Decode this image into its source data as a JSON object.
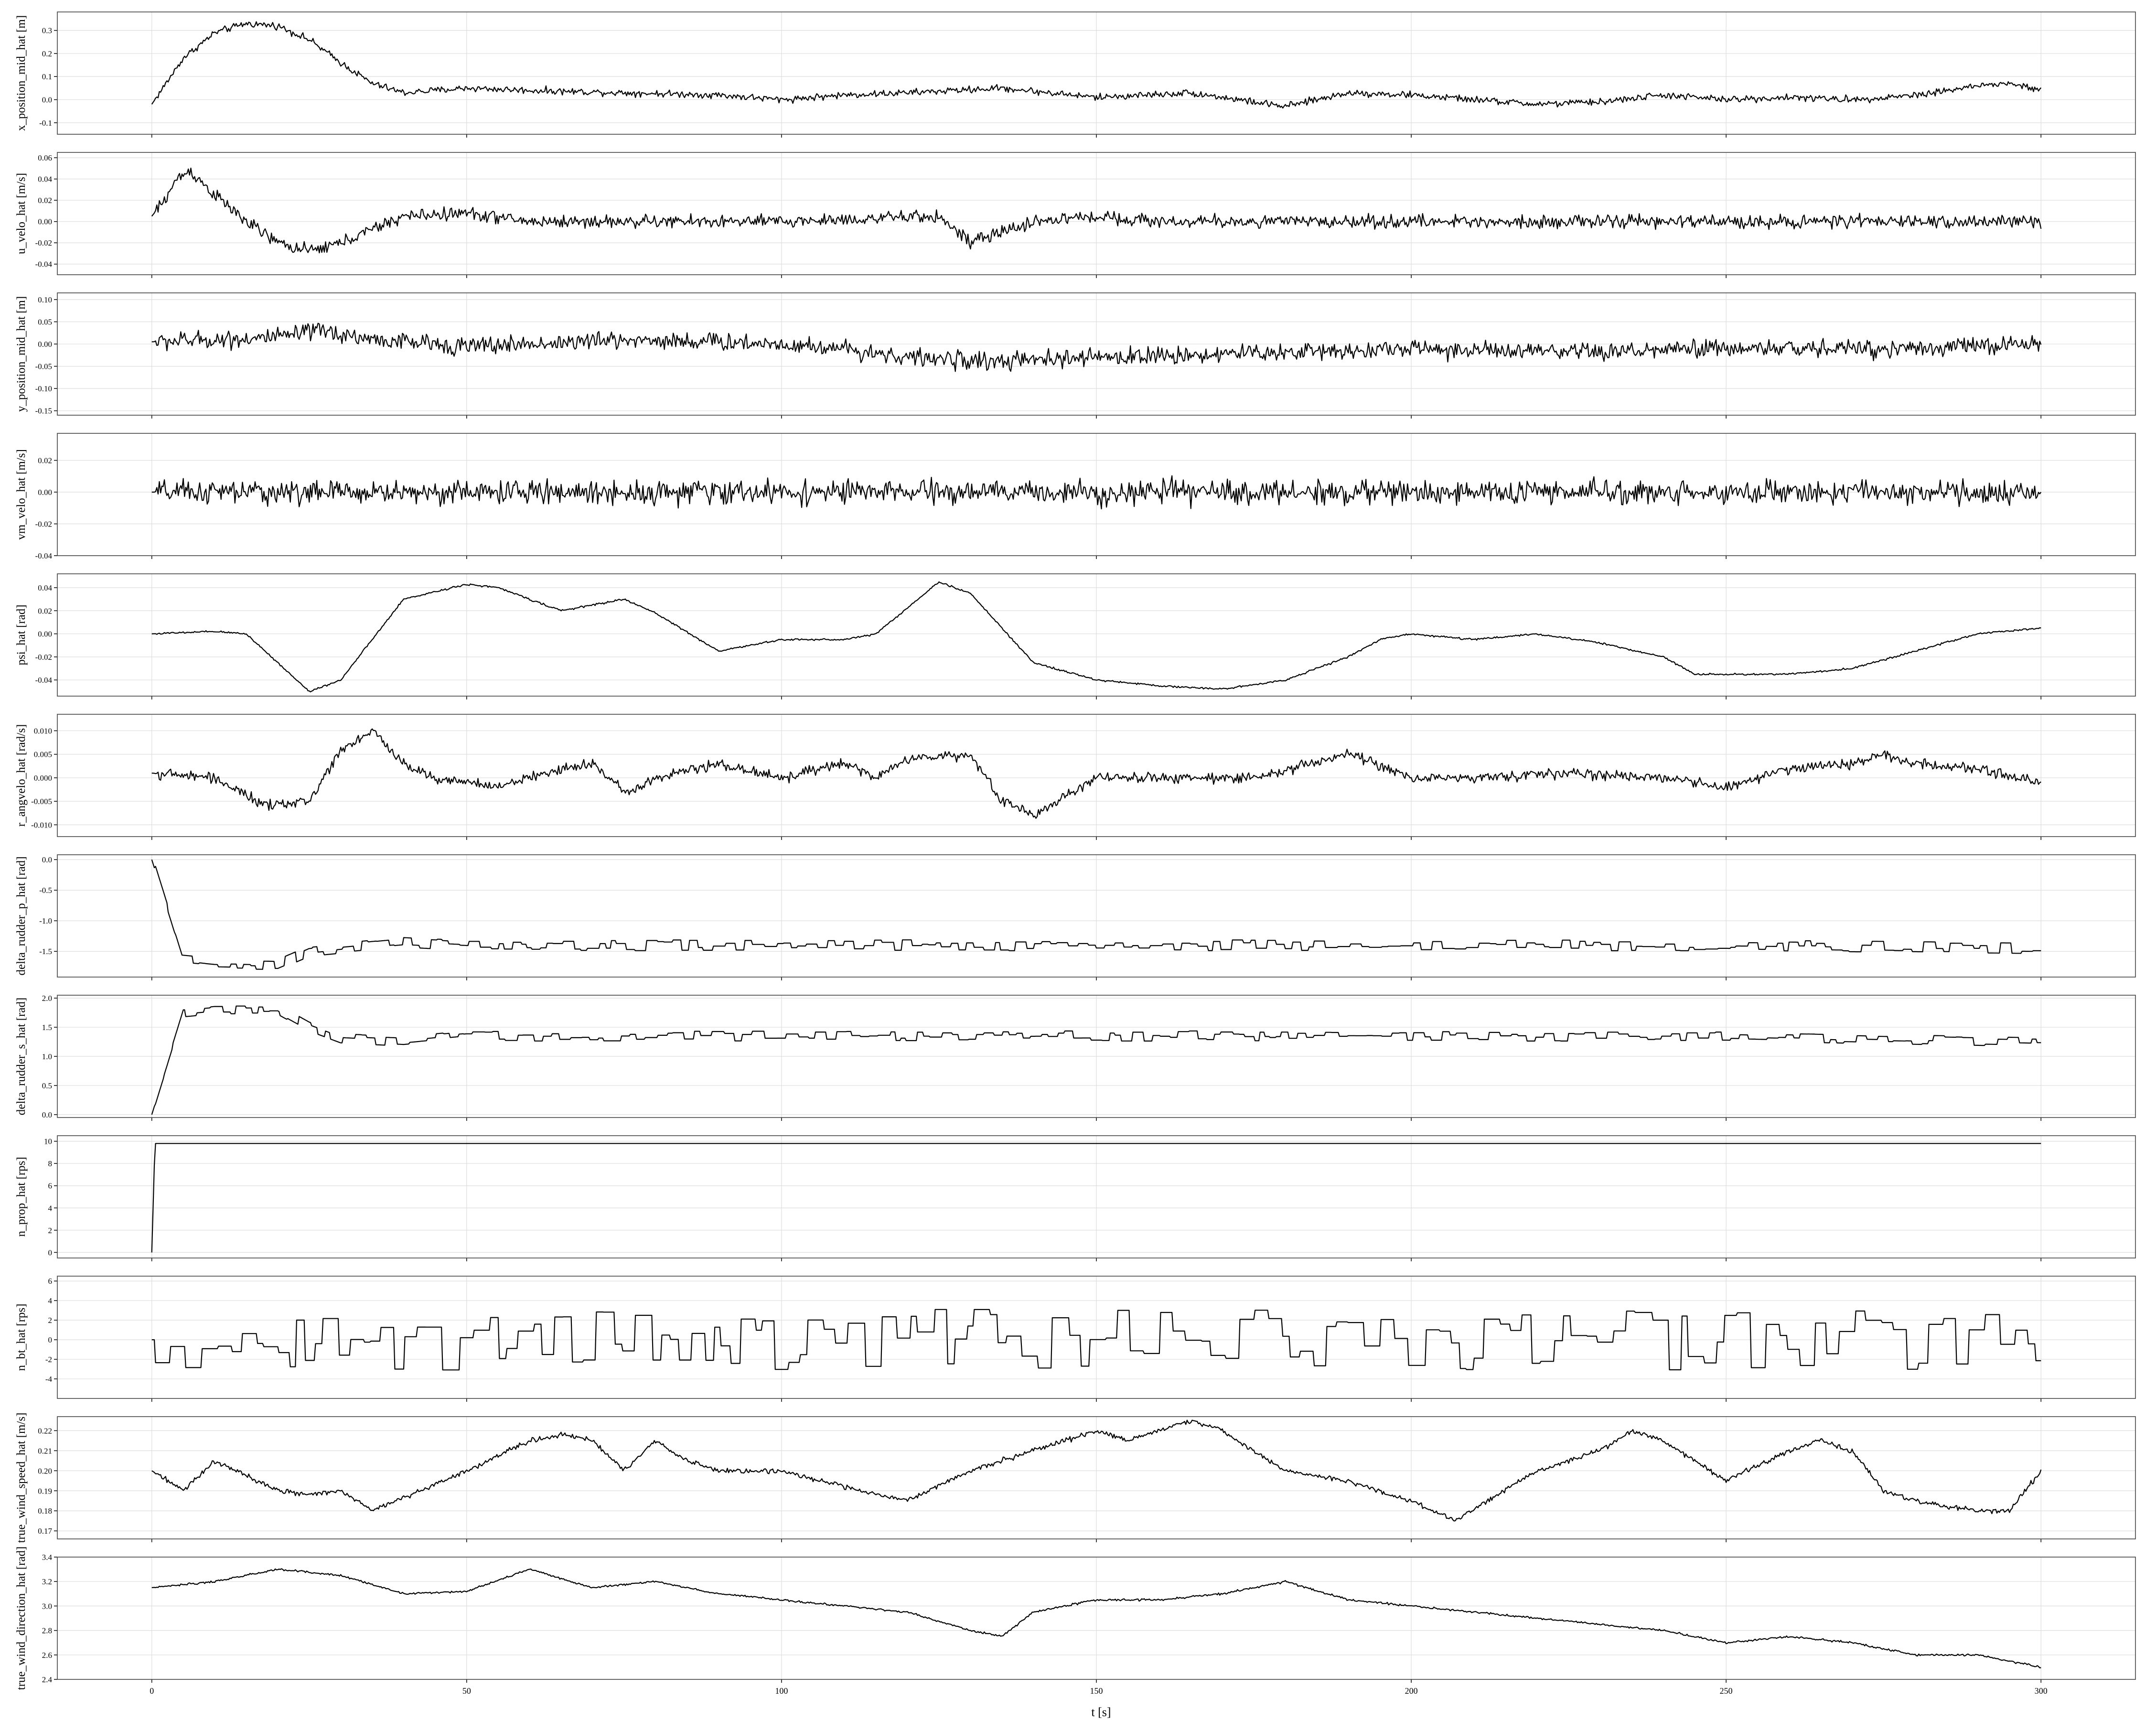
{
  "figure": {
    "xlabel": "t [s]",
    "xlim": [
      -15,
      315
    ],
    "xticks": [
      0,
      50,
      100,
      150,
      200,
      250,
      300
    ],
    "grid": true,
    "line_color": "#000000",
    "grid_color": "#dddddd"
  },
  "chart_data": [
    {
      "type": "line",
      "ylabel": "x_position_mid_hat [m]",
      "ylim": [
        -0.15,
        0.38
      ],
      "yticks": [
        -0.1,
        0.0,
        0.1,
        0.2,
        0.3
      ],
      "tick_decimals": 1,
      "noise": 0.022,
      "step_hold": 0,
      "x": [
        0,
        5,
        10,
        15,
        20,
        25,
        30,
        35,
        40,
        50,
        60,
        75,
        90,
        100,
        110,
        120,
        135,
        150,
        165,
        180,
        190,
        200,
        210,
        220,
        230,
        240,
        250,
        260,
        270,
        280,
        290,
        295,
        300
      ],
      "values": [
        -0.02,
        0.18,
        0.29,
        0.33,
        0.32,
        0.26,
        0.16,
        0.07,
        0.03,
        0.05,
        0.04,
        0.03,
        0.02,
        0.0,
        0.02,
        0.03,
        0.05,
        0.01,
        0.03,
        -0.03,
        0.03,
        0.02,
        0.0,
        -0.02,
        -0.01,
        0.02,
        0.0,
        0.01,
        0.0,
        0.02,
        0.06,
        0.07,
        0.04
      ]
    },
    {
      "type": "line",
      "ylabel": "u_velo_hat [m/s]",
      "ylim": [
        -0.05,
        0.065
      ],
      "yticks": [
        -0.04,
        -0.02,
        0.0,
        0.02,
        0.04,
        0.06
      ],
      "tick_decimals": 2,
      "noise": 0.009,
      "step_hold": 0,
      "x": [
        0,
        2,
        4,
        6,
        10,
        15,
        20,
        25,
        30,
        40,
        50,
        60,
        75,
        100,
        125,
        130,
        140,
        150,
        160,
        175,
        200,
        225,
        250,
        275,
        300
      ],
      "values": [
        0.005,
        0.02,
        0.04,
        0.048,
        0.025,
        0.0,
        -0.02,
        -0.028,
        -0.02,
        0.005,
        0.008,
        0.0,
        0.0,
        0.0,
        0.005,
        -0.02,
        0.0,
        0.005,
        0.0,
        0.0,
        0.0,
        0.0,
        0.0,
        0.0,
        0.0
      ]
    },
    {
      "type": "line",
      "ylabel": "y_position_mid_hat [m]",
      "ylim": [
        -0.16,
        0.115
      ],
      "yticks": [
        -0.15,
        -0.1,
        -0.05,
        0.0,
        0.05,
        0.1
      ],
      "tick_decimals": 2,
      "noise": 0.03,
      "step_hold": 0,
      "x": [
        0,
        10,
        20,
        27,
        35,
        50,
        60,
        75,
        90,
        100,
        110,
        120,
        135,
        150,
        175,
        200,
        225,
        250,
        275,
        300
      ],
      "values": [
        0.005,
        0.01,
        0.015,
        0.03,
        0.01,
        -0.005,
        0.0,
        0.01,
        0.005,
        0.0,
        -0.01,
        -0.03,
        -0.04,
        -0.03,
        -0.02,
        -0.01,
        -0.02,
        -0.01,
        -0.01,
        0.0
      ]
    },
    {
      "type": "line",
      "ylabel": "vm_velo_hat [m/s]",
      "ylim": [
        -0.04,
        0.037
      ],
      "yticks": [
        -0.04,
        -0.02,
        0.0,
        0.02
      ],
      "tick_decimals": 2,
      "noise": 0.011,
      "step_hold": 0,
      "x": [
        0,
        100,
        200,
        300
      ],
      "values": [
        0.0,
        0.0,
        0.0,
        0.0
      ]
    },
    {
      "type": "line",
      "ylabel": "psi_hat [rad]",
      "ylim": [
        -0.054,
        0.052
      ],
      "yticks": [
        -0.04,
        -0.02,
        0.0,
        0.02,
        0.04
      ],
      "tick_decimals": 2,
      "noise": 0.0012,
      "step_hold": 0,
      "x": [
        0,
        10,
        15,
        20,
        25,
        30,
        40,
        50,
        55,
        65,
        75,
        80,
        90,
        100,
        110,
        115,
        125,
        130,
        140,
        150,
        160,
        170,
        180,
        190,
        195,
        200,
        210,
        220,
        230,
        240,
        245,
        250,
        260,
        270,
        280,
        290,
        300
      ],
      "values": [
        0.0,
        0.002,
        0.0,
        -0.025,
        -0.05,
        -0.04,
        0.03,
        0.043,
        0.04,
        0.02,
        0.03,
        0.018,
        -0.015,
        -0.005,
        -0.005,
        0.0,
        0.045,
        0.035,
        -0.025,
        -0.04,
        -0.045,
        -0.048,
        -0.04,
        -0.02,
        -0.005,
        0.0,
        -0.005,
        0.0,
        -0.008,
        -0.02,
        -0.035,
        -0.035,
        -0.035,
        -0.03,
        -0.015,
        0.0,
        0.005
      ]
    },
    {
      "type": "line",
      "ylabel": "r_angvelo_hat [rad/s]",
      "ylim": [
        -0.0125,
        0.0135
      ],
      "yticks": [
        -0.01,
        -0.005,
        0.0,
        0.005,
        0.01
      ],
      "tick_decimals": 3,
      "noise": 0.0016,
      "step_hold": 0,
      "x": [
        0,
        10,
        18,
        25,
        30,
        35,
        40,
        45,
        55,
        65,
        70,
        75,
        80,
        90,
        100,
        110,
        115,
        120,
        130,
        135,
        140,
        150,
        160,
        175,
        190,
        200,
        210,
        225,
        240,
        250,
        260,
        270,
        275,
        280,
        290,
        300
      ],
      "values": [
        0.001,
        0.0,
        -0.006,
        -0.005,
        0.006,
        0.01,
        0.003,
        0.0,
        -0.002,
        0.002,
        0.003,
        -0.003,
        0.0,
        0.003,
        0.0,
        0.003,
        0.0,
        0.004,
        0.005,
        -0.005,
        -0.008,
        0.0,
        0.0,
        0.0,
        0.005,
        0.0,
        0.0,
        0.001,
        0.0,
        -0.002,
        0.002,
        0.003,
        0.005,
        0.003,
        0.002,
        -0.001
      ]
    },
    {
      "type": "line",
      "ylabel": "delta_rudder_p_hat [rad]",
      "ylim": [
        -1.92,
        0.08
      ],
      "yticks": [
        -1.5,
        -1.0,
        -0.5,
        0.0
      ],
      "tick_decimals": 1,
      "noise": 0.09,
      "step_hold": 1.3,
      "x": [
        0,
        5,
        10,
        20,
        25,
        30,
        40,
        50,
        100,
        150,
        200,
        250,
        300
      ],
      "values": [
        0.0,
        -1.65,
        -1.7,
        -1.72,
        -1.5,
        -1.45,
        -1.35,
        -1.4,
        -1.4,
        -1.4,
        -1.4,
        -1.4,
        -1.45
      ]
    },
    {
      "type": "line",
      "ylabel": "delta_rudder_s_hat [rad]",
      "ylim": [
        -0.05,
        2.05
      ],
      "yticks": [
        0.0,
        0.5,
        1.0,
        1.5,
        2.0
      ],
      "tick_decimals": 1,
      "noise": 0.09,
      "step_hold": 1.3,
      "x": [
        0,
        5,
        10,
        20,
        25,
        30,
        40,
        50,
        100,
        150,
        200,
        250,
        300
      ],
      "values": [
        0.0,
        1.75,
        1.8,
        1.8,
        1.5,
        1.3,
        1.25,
        1.35,
        1.35,
        1.35,
        1.35,
        1.35,
        1.25
      ]
    },
    {
      "type": "line",
      "ylabel": "n_prop_hat [rps]",
      "ylim": [
        -0.5,
        10.5
      ],
      "yticks": [
        0,
        2,
        4,
        6,
        8,
        10
      ],
      "tick_decimals": 0,
      "noise": 0,
      "step_hold": 0,
      "x": [
        0,
        0.5,
        300
      ],
      "values": [
        0,
        9.8,
        9.8
      ]
    },
    {
      "type": "line",
      "ylabel": "n_bt_hat [rps]",
      "ylim": [
        -6,
        6.5
      ],
      "yticks": [
        -4,
        -2,
        0,
        2,
        4,
        6
      ],
      "tick_decimals": 0,
      "noise": 3.1,
      "step_hold": 1.8,
      "x": [
        0,
        100,
        200,
        300
      ],
      "values": [
        0,
        0,
        0,
        0
      ]
    },
    {
      "type": "line",
      "ylabel": "true_wind_speed_hat [m/s]",
      "ylim": [
        0.166,
        0.227
      ],
      "yticks": [
        0.17,
        0.18,
        0.19,
        0.2,
        0.21,
        0.22
      ],
      "tick_decimals": 2,
      "noise": 0.0018,
      "step_hold": 0,
      "x": [
        0,
        5,
        10,
        20,
        25,
        30,
        35,
        50,
        60,
        65,
        70,
        75,
        80,
        85,
        90,
        100,
        110,
        120,
        130,
        140,
        150,
        155,
        160,
        165,
        170,
        175,
        180,
        190,
        200,
        207,
        212,
        220,
        230,
        235,
        240,
        250,
        260,
        265,
        270,
        275,
        280,
        290,
        295,
        300
      ],
      "values": [
        0.2,
        0.19,
        0.205,
        0.19,
        0.188,
        0.19,
        0.18,
        0.2,
        0.215,
        0.218,
        0.215,
        0.2,
        0.215,
        0.205,
        0.2,
        0.2,
        0.192,
        0.185,
        0.2,
        0.21,
        0.22,
        0.215,
        0.22,
        0.225,
        0.22,
        0.21,
        0.2,
        0.195,
        0.185,
        0.175,
        0.185,
        0.2,
        0.21,
        0.22,
        0.215,
        0.195,
        0.21,
        0.215,
        0.21,
        0.19,
        0.185,
        0.18,
        0.18,
        0.2
      ]
    },
    {
      "type": "line",
      "ylabel": "true_wind_direction_hat [rad]",
      "ylim": [
        2.4,
        3.4
      ],
      "yticks": [
        2.4,
        2.6,
        2.8,
        3.0,
        3.2,
        3.4
      ],
      "tick_decimals": 1,
      "noise": 0.012,
      "step_hold": 0,
      "x": [
        0,
        10,
        20,
        30,
        40,
        50,
        60,
        70,
        80,
        90,
        100,
        110,
        120,
        130,
        135,
        140,
        150,
        160,
        170,
        180,
        190,
        200,
        210,
        220,
        230,
        240,
        250,
        260,
        270,
        280,
        290,
        300
      ],
      "values": [
        3.15,
        3.2,
        3.3,
        3.25,
        3.1,
        3.12,
        3.3,
        3.15,
        3.2,
        3.1,
        3.05,
        3.0,
        2.95,
        2.8,
        2.75,
        2.95,
        3.05,
        3.05,
        3.1,
        3.2,
        3.05,
        3.0,
        2.95,
        2.9,
        2.85,
        2.8,
        2.7,
        2.75,
        2.7,
        2.6,
        2.6,
        2.5
      ]
    }
  ]
}
